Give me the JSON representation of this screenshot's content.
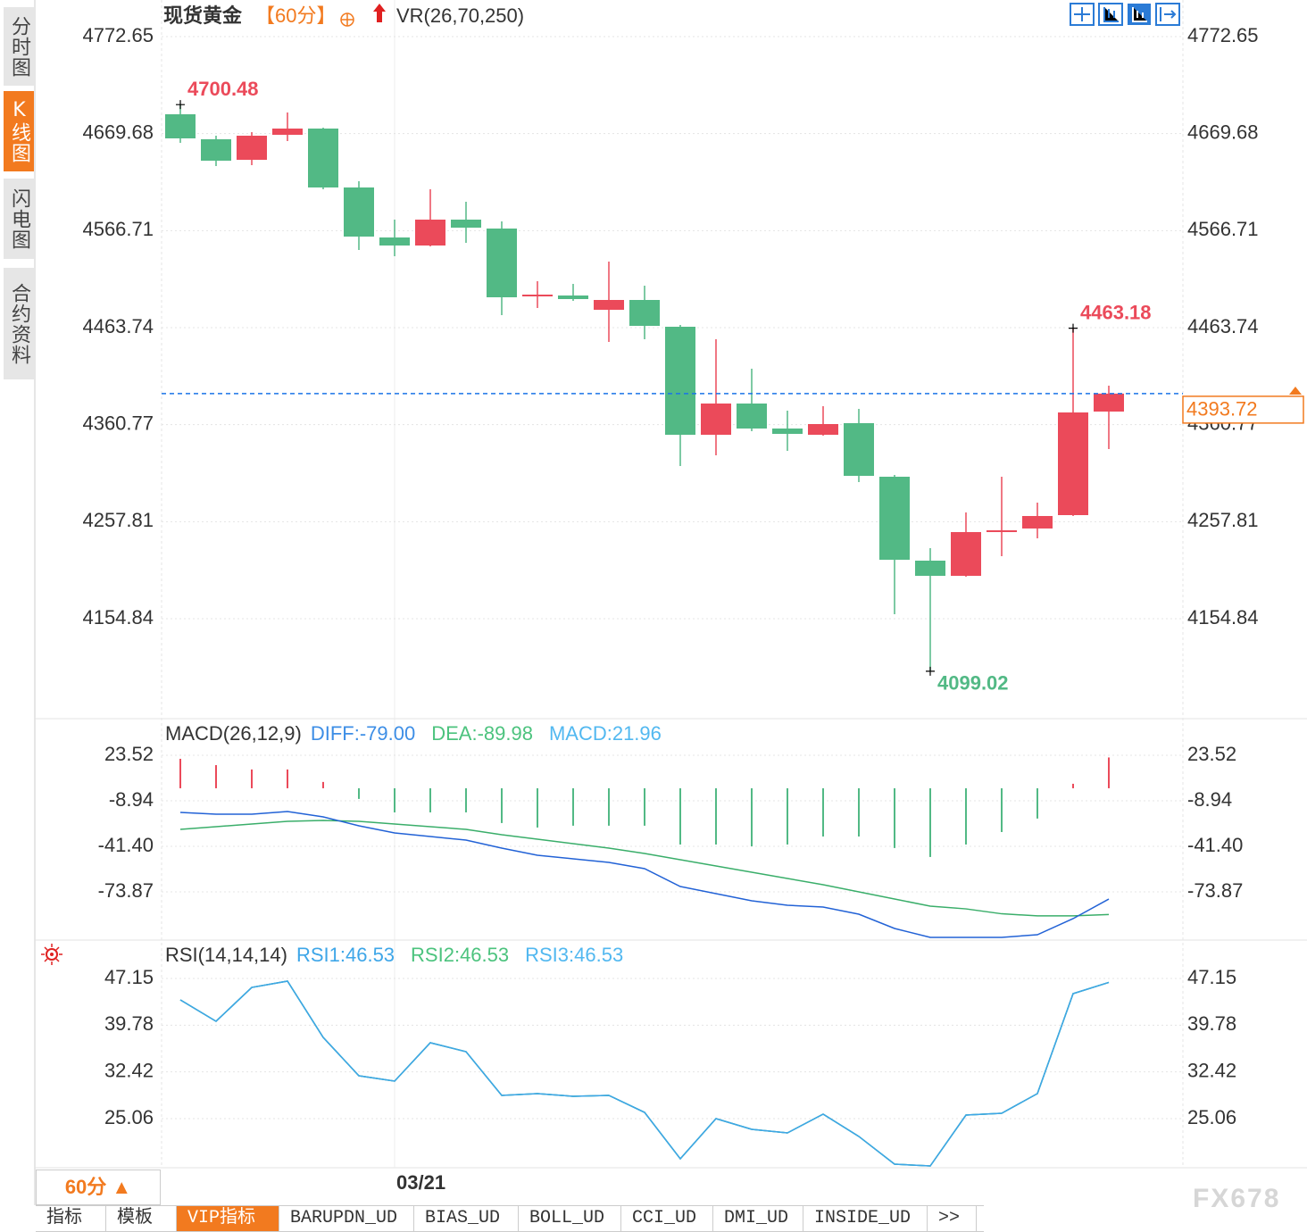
{
  "chart_data": [
    {
      "type": "candlestick",
      "title": "现货黄金",
      "period": "【60分】",
      "indicator": "VR(26,70,250)",
      "categories": [
        null,
        null,
        null,
        null,
        null,
        null,
        "03/21",
        null,
        null,
        null,
        null,
        null,
        null,
        null,
        null,
        null,
        null,
        null,
        null,
        null,
        null,
        null,
        null,
        null,
        null,
        null,
        null
      ],
      "open": [
        4690.21,
        4663.68,
        4641.89,
        4668.42,
        4675.05,
        4612.51,
        4559.45,
        4550.92,
        4578.4,
        4568.92,
        4496.91,
        4497.86,
        4482.7,
        4493.12,
        4464.69,
        4350.04,
        4383.2,
        4356.67,
        4350.04,
        4362.36,
        4305.5,
        4216.43,
        4200.32,
        4246.75,
        4250.55,
        4264.76,
        4374.67
      ],
      "high": [
        4700.48,
        4667.47,
        4671.26,
        4692.11,
        4676.0,
        4619.15,
        4578.4,
        4610.62,
        4597.35,
        4576.51,
        4513.02,
        4510.18,
        4533.86,
        4508.28,
        4466.59,
        4451.43,
        4420.16,
        4375.62,
        4380.36,
        4377.52,
        4307.4,
        4229.7,
        4267.6,
        4305.5,
        4278.02,
        4463.18,
        4402.15
      ],
      "low": [
        4659.89,
        4635.25,
        4636.2,
        4661.79,
        4610.62,
        4546.18,
        4539.55,
        4549.97,
        4553.76,
        4477.01,
        4484.59,
        4492.17,
        4448.58,
        4451.43,
        4316.87,
        4328.24,
        4353.83,
        4332.98,
        4349.09,
        4299.82,
        4159.58,
        4099.02,
        4199.38,
        4221.17,
        4240.12,
        4263.81,
        4334.88
      ],
      "close": [
        4664.63,
        4640.94,
        4667.47,
        4675.05,
        4612.51,
        4560.4,
        4550.92,
        4578.4,
        4569.87,
        4495.96,
        4498.81,
        4494.07,
        4493.12,
        4465.64,
        4350.04,
        4383.2,
        4356.67,
        4350.99,
        4361.41,
        4306.45,
        4217.38,
        4200.32,
        4246.75,
        4248.65,
        4263.81,
        4373.73,
        4393.72
      ],
      "up_color": "#eb4a5a",
      "down_color": "#52b985",
      "marked_highs": [
        0,
        25
      ],
      "marked_lows": [
        21
      ],
      "last_price_line": true,
      "ylim": [
        4048.71,
        4811.5
      ],
      "yticks": [
        4772.65,
        4669.68,
        4566.71,
        4463.74,
        4360.77,
        4257.81,
        4154.84
      ],
      "grid": true
    },
    {
      "type": "line",
      "title": "MACD(26,12,9)",
      "up_color": "#eb4a5a",
      "down_color": "#52b985",
      "series": [
        {
          "name": "DIFF:-79.00",
          "color": "#3d8ee6",
          "line_color": "#2262d6",
          "values": [
            -17.22,
            -18.49,
            -18.49,
            -16.58,
            -20.4,
            -26.76,
            -31.86,
            -34.4,
            -36.95,
            -42.68,
            -47.77,
            -50.31,
            -52.86,
            -57.32,
            -70.05,
            -75.14,
            -80.23,
            -83.41,
            -84.69,
            -89.78,
            -99.96,
            -106.33,
            -106.33,
            -106.33,
            -104.42,
            -92.96,
            -79.0
          ]
        },
        {
          "name": "DEA:-89.98",
          "color": "#4cc37e",
          "line_color": "#3aae6a",
          "values": [
            -29.31,
            -27.4,
            -25.49,
            -23.58,
            -22.94,
            -23.58,
            -25.49,
            -27.4,
            -29.31,
            -33.13,
            -36.31,
            -39.49,
            -42.68,
            -46.5,
            -50.95,
            -55.41,
            -59.86,
            -64.32,
            -68.77,
            -73.87,
            -78.96,
            -84.05,
            -86.0,
            -89.5,
            -91.0,
            -91.0,
            -89.98
          ]
        },
        {
          "name": "MACD:21.96",
          "color": "#52b8f0",
          "style": "bar",
          "values": [
            21.0,
            16.5,
            13.4,
            13.4,
            4.5,
            -7.6,
            -17.2,
            -17.2,
            -17.2,
            -24.8,
            -28.0,
            -26.7,
            -26.7,
            -26.7,
            -40.1,
            -40.1,
            -41.4,
            -40.1,
            -34.4,
            -34.4,
            -42.6,
            -49.0,
            -40.1,
            -31.2,
            -21.6,
            3.2,
            21.96
          ]
        }
      ],
      "ylim": [
        -108.24,
        49.62
      ],
      "yticks": [
        23.52,
        -8.94,
        {
          "value": -41.4,
          "label": "-41.40"
        },
        -73.87
      ],
      "grid": true
    },
    {
      "type": "line",
      "title": "RSI(14,14,14)",
      "series": [
        {
          "name": "RSI1:46.53",
          "color": "#3ea6e8",
          "line_color": "#3ea6e8",
          "values": [
            43.77,
            40.4,
            45.74,
            46.73,
            37.86,
            31.81,
            30.97,
            37.02,
            35.61,
            28.72,
            29.0,
            28.58,
            28.72,
            26.04,
            18.73,
            25.06,
            23.37,
            22.81,
            25.76,
            22.25,
            17.88,
            17.6,
            25.62,
            25.9,
            29.0,
            44.76,
            46.53
          ]
        },
        {
          "name": "RSI2:46.53",
          "color": "#4cc37e",
          "line_color": "#4cc37e",
          "values": [
            43.77,
            40.4,
            45.74,
            46.73,
            37.86,
            31.81,
            30.97,
            37.02,
            35.61,
            28.72,
            29.0,
            28.58,
            28.72,
            26.04,
            18.73,
            25.06,
            23.37,
            22.81,
            25.76,
            22.25,
            17.88,
            17.6,
            25.62,
            25.9,
            29.0,
            44.76,
            46.53
          ]
        },
        {
          "name": "RSI3:46.53",
          "color": "#52b8f0",
          "line_color": "#3ea6e8",
          "values": [
            43.77,
            40.4,
            45.74,
            46.73,
            37.86,
            31.81,
            30.97,
            37.02,
            35.61,
            28.72,
            29.0,
            28.58,
            28.72,
            26.04,
            18.73,
            25.06,
            23.37,
            22.81,
            25.76,
            22.25,
            17.88,
            17.6,
            25.62,
            25.9,
            29.0,
            44.76,
            46.53
          ]
        }
      ],
      "ylim": [
        17.32,
        53.2
      ],
      "yticks": [
        47.15,
        39.78,
        32.42,
        25.06
      ],
      "grid": true
    }
  ],
  "ui": {
    "side_tabs": [
      "分时图",
      "K线图",
      "闪电图",
      "合约资料"
    ],
    "active_side_tab": 1,
    "period_button": "60分 ▲",
    "bottom_tabs": [
      "指标",
      "模板",
      "VIP指标",
      "BARUPDN_UD",
      "BIAS_UD",
      "BOLL_UD",
      "CCI_UD",
      "DMI_UD",
      "INSIDE_UD",
      ">>"
    ],
    "active_bottom_tab": 2,
    "watermark": "FX678"
  }
}
